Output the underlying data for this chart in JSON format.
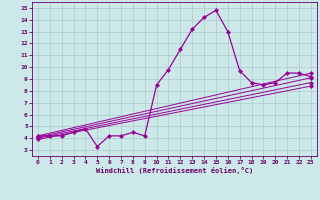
{
  "background_color": "#cce8e8",
  "line_color": "#990099",
  "grid_color": "#aacccc",
  "xlabel": "Windchill (Refroidissement éolien,°C)",
  "xlim": [
    -0.5,
    23.5
  ],
  "ylim": [
    2.5,
    15.5
  ],
  "yticks": [
    3,
    4,
    5,
    6,
    7,
    8,
    9,
    10,
    11,
    12,
    13,
    14,
    15
  ],
  "xticks": [
    0,
    1,
    2,
    3,
    4,
    5,
    6,
    7,
    8,
    9,
    10,
    11,
    12,
    13,
    14,
    15,
    16,
    17,
    18,
    19,
    20,
    21,
    22,
    23
  ],
  "main_line_x": [
    0,
    1,
    2,
    3,
    4,
    5,
    6,
    7,
    8,
    9,
    10,
    11,
    12,
    13,
    14,
    15,
    16,
    17,
    18,
    19,
    20,
    21,
    22,
    23
  ],
  "main_line_y": [
    4.2,
    4.2,
    4.2,
    4.5,
    4.8,
    3.3,
    4.2,
    4.2,
    4.5,
    4.2,
    8.5,
    9.8,
    11.5,
    13.2,
    14.2,
    14.8,
    13.0,
    9.7,
    8.7,
    8.5,
    8.7,
    9.5,
    9.5,
    9.2
  ],
  "straight_lines": [
    {
      "x": [
        0,
        23
      ],
      "y": [
        4.2,
        9.5
      ]
    },
    {
      "x": [
        0,
        23
      ],
      "y": [
        4.1,
        9.1
      ]
    },
    {
      "x": [
        0,
        23
      ],
      "y": [
        4.0,
        8.7
      ]
    },
    {
      "x": [
        0,
        23
      ],
      "y": [
        3.9,
        8.4
      ]
    }
  ]
}
